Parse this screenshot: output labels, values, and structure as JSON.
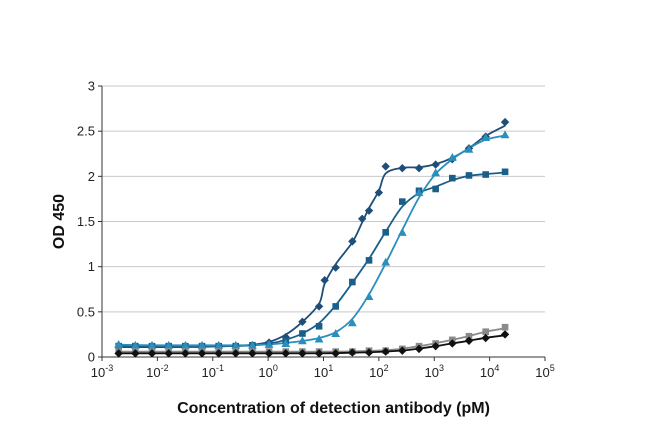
{
  "chart_data": {
    "type": "scatter",
    "title": "",
    "xlabel": "Concentration of detection antibody (pM)",
    "ylabel": "OD 450",
    "x_scale": "log10",
    "xlim": [
      0.001,
      100000
    ],
    "ylim": [
      0,
      3
    ],
    "x_ticks": [
      {
        "base": "10",
        "exp": "-3",
        "value": 0.001
      },
      {
        "base": "10",
        "exp": "-2",
        "value": 0.01
      },
      {
        "base": "10",
        "exp": "-1",
        "value": 0.1
      },
      {
        "base": "10",
        "exp": "0",
        "value": 1
      },
      {
        "base": "10",
        "exp": "1",
        "value": 10
      },
      {
        "base": "10",
        "exp": "2",
        "value": 100
      },
      {
        "base": "10",
        "exp": "3",
        "value": 1000
      },
      {
        "base": "10",
        "exp": "4",
        "value": 10000
      },
      {
        "base": "10",
        "exp": "5",
        "value": 100000
      }
    ],
    "y_ticks": [
      {
        "label": "0",
        "value": 0
      },
      {
        "label": "0.5",
        "value": 0.5
      },
      {
        "label": "1",
        "value": 1
      },
      {
        "label": "1.5",
        "value": 1.5
      },
      {
        "label": "2",
        "value": 2
      },
      {
        "label": "2.5",
        "value": 2.5
      },
      {
        "label": "3",
        "value": 3
      }
    ],
    "grid": "horizontal",
    "legend": "none",
    "series": [
      {
        "marker": "diamond",
        "color": "#1f4e79",
        "fit_curve": true,
        "points": [
          [
            0.002,
            0.11
          ],
          [
            0.004,
            0.11
          ],
          [
            0.008,
            0.11
          ],
          [
            0.016,
            0.11
          ],
          [
            0.032,
            0.11
          ],
          [
            0.064,
            0.11
          ],
          [
            0.128,
            0.12
          ],
          [
            0.26,
            0.12
          ],
          [
            0.52,
            0.13
          ],
          [
            1.04,
            0.16
          ],
          [
            2.08,
            0.22
          ],
          [
            4.16,
            0.39
          ],
          [
            8.32,
            0.56
          ],
          [
            10.5,
            0.85
          ],
          [
            16.6,
            0.99
          ],
          [
            33.2,
            1.28
          ],
          [
            50,
            1.53
          ],
          [
            66.4,
            1.62
          ],
          [
            100,
            1.82
          ],
          [
            132.8,
            2.11
          ],
          [
            265,
            2.09
          ],
          [
            531,
            2.09
          ],
          [
            1060,
            2.13
          ],
          [
            2120,
            2.19
          ],
          [
            4240,
            2.31
          ],
          [
            8490,
            2.44
          ],
          [
            19000,
            2.6
          ]
        ]
      },
      {
        "marker": "square",
        "color": "#1a5f8a",
        "fit_curve": true,
        "points": [
          [
            0.002,
            0.12
          ],
          [
            0.004,
            0.12
          ],
          [
            0.008,
            0.12
          ],
          [
            0.016,
            0.12
          ],
          [
            0.032,
            0.12
          ],
          [
            0.064,
            0.12
          ],
          [
            0.128,
            0.12
          ],
          [
            0.26,
            0.12
          ],
          [
            0.52,
            0.13
          ],
          [
            1.04,
            0.14
          ],
          [
            2.08,
            0.18
          ],
          [
            4.16,
            0.26
          ],
          [
            8.32,
            0.34
          ],
          [
            16.6,
            0.56
          ],
          [
            33.2,
            0.83
          ],
          [
            66.4,
            1.07
          ],
          [
            132.8,
            1.38
          ],
          [
            265,
            1.72
          ],
          [
            531,
            1.84
          ],
          [
            1060,
            1.86
          ],
          [
            2120,
            1.98
          ],
          [
            4240,
            2.01
          ],
          [
            8490,
            2.02
          ],
          [
            19000,
            2.05
          ]
        ]
      },
      {
        "marker": "triangle",
        "color": "#2a8fbd",
        "fit_curve": true,
        "points": [
          [
            0.002,
            0.14
          ],
          [
            0.004,
            0.13
          ],
          [
            0.008,
            0.13
          ],
          [
            0.016,
            0.13
          ],
          [
            0.032,
            0.13
          ],
          [
            0.064,
            0.13
          ],
          [
            0.128,
            0.13
          ],
          [
            0.26,
            0.13
          ],
          [
            0.52,
            0.13
          ],
          [
            1.04,
            0.14
          ],
          [
            2.08,
            0.15
          ],
          [
            4.16,
            0.18
          ],
          [
            8.32,
            0.2
          ],
          [
            16.6,
            0.26
          ],
          [
            33.2,
            0.38
          ],
          [
            66.4,
            0.67
          ],
          [
            132.8,
            1.05
          ],
          [
            265,
            1.38
          ],
          [
            531,
            1.82
          ],
          [
            1060,
            2.04
          ],
          [
            2120,
            2.21
          ],
          [
            4240,
            2.3
          ],
          [
            8490,
            2.43
          ],
          [
            19000,
            2.46
          ]
        ]
      },
      {
        "marker": "square",
        "color": "#8a8a8a",
        "fit_curve": true,
        "points": [
          [
            0.002,
            0.06
          ],
          [
            0.004,
            0.06
          ],
          [
            0.008,
            0.06
          ],
          [
            0.016,
            0.06
          ],
          [
            0.032,
            0.06
          ],
          [
            0.064,
            0.06
          ],
          [
            0.128,
            0.06
          ],
          [
            0.26,
            0.06
          ],
          [
            0.52,
            0.06
          ],
          [
            1.04,
            0.06
          ],
          [
            2.08,
            0.06
          ],
          [
            4.16,
            0.06
          ],
          [
            8.32,
            0.06
          ],
          [
            16.6,
            0.06
          ],
          [
            33.2,
            0.06
          ],
          [
            66.4,
            0.07
          ],
          [
            132.8,
            0.07
          ],
          [
            265,
            0.09
          ],
          [
            531,
            0.12
          ],
          [
            1060,
            0.15
          ],
          [
            2120,
            0.19
          ],
          [
            4240,
            0.23
          ],
          [
            8490,
            0.28
          ],
          [
            19000,
            0.33
          ]
        ]
      },
      {
        "marker": "diamond",
        "color": "#111111",
        "fit_curve": true,
        "points": [
          [
            0.002,
            0.04
          ],
          [
            0.004,
            0.04
          ],
          [
            0.008,
            0.04
          ],
          [
            0.016,
            0.04
          ],
          [
            0.032,
            0.04
          ],
          [
            0.064,
            0.04
          ],
          [
            0.128,
            0.04
          ],
          [
            0.26,
            0.04
          ],
          [
            0.52,
            0.04
          ],
          [
            1.04,
            0.04
          ],
          [
            2.08,
            0.04
          ],
          [
            4.16,
            0.04
          ],
          [
            8.32,
            0.04
          ],
          [
            16.6,
            0.04
          ],
          [
            33.2,
            0.05
          ],
          [
            66.4,
            0.05
          ],
          [
            132.8,
            0.06
          ],
          [
            265,
            0.07
          ],
          [
            531,
            0.09
          ],
          [
            1060,
            0.12
          ],
          [
            2120,
            0.15
          ],
          [
            4240,
            0.18
          ],
          [
            8490,
            0.21
          ],
          [
            19000,
            0.25
          ]
        ]
      }
    ]
  }
}
